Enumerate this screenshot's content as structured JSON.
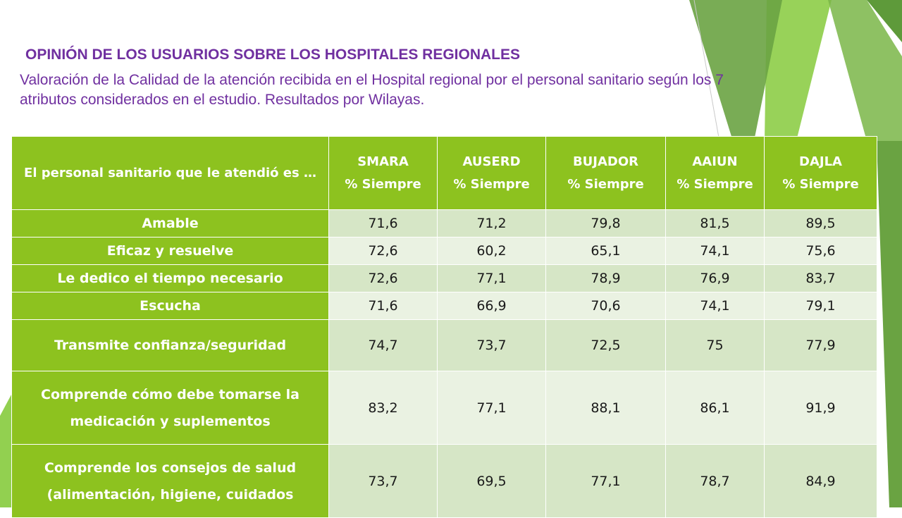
{
  "title": "OPINIÓN DE LOS USUARIOS SOBRE LOS HOSPITALES REGIONALES",
  "subtitle": "Valoración de la Calidad de la atención  recibida en el Hospital regional por el personal sanitario según los 7 atributos considerados en el estudio. Resultados por Wilayas.",
  "colors": {
    "title": "#7030a0",
    "header_green": "#8dc21f",
    "row_dark": "#d6e6c6",
    "row_light": "#eaf2e2"
  },
  "table": {
    "header_label": "El personal sanitario que le atendió es …",
    "columns": [
      {
        "name": "SMARA",
        "sub": "% Siempre"
      },
      {
        "name": "AUSERD",
        "sub": "% Siempre"
      },
      {
        "name": "BUJADOR",
        "sub": "% Siempre"
      },
      {
        "name": "AAIUN",
        "sub": "% Siempre"
      },
      {
        "name": "DAJLA",
        "sub": "% Siempre"
      }
    ],
    "rows": [
      {
        "label": "Amable",
        "values": [
          "71,6",
          "71,2",
          "79,8",
          "81,5",
          "89,5"
        ]
      },
      {
        "label": "Eficaz y resuelve",
        "values": [
          "72,6",
          "60,2",
          "65,1",
          "74,1",
          "75,6"
        ]
      },
      {
        "label": "Le dedico el tiempo necesario",
        "values": [
          "72,6",
          "77,1",
          "78,9",
          "76,9",
          "83,7"
        ]
      },
      {
        "label": "Escucha",
        "values": [
          "71,6",
          "66,9",
          "70,6",
          "74,1",
          "79,1"
        ]
      },
      {
        "label": "Transmite confianza/seguridad",
        "values": [
          "74,7",
          "73,7",
          "72,5",
          "75",
          "77,9"
        ]
      },
      {
        "label": "Comprende  cómo debe tomarse la medicación y suplementos",
        "values": [
          "83,2",
          "77,1",
          "88,1",
          "86,1",
          "91,9"
        ]
      },
      {
        "label": "Comprende los consejos de salud (alimentación, higiene, cuidados",
        "values": [
          "73,7",
          "69,5",
          "77,1",
          "78,7",
          "84,9"
        ]
      }
    ]
  }
}
